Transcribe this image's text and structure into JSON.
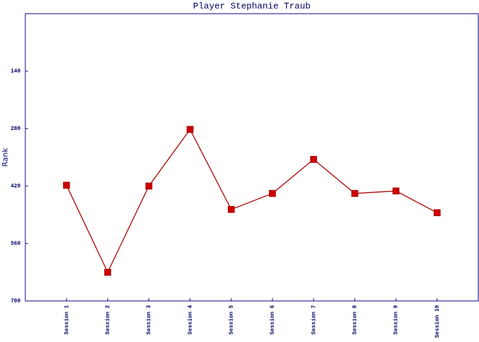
{
  "chart_data": {
    "type": "line",
    "title": "Player Stephanie Traub",
    "y_label": "Rank",
    "categories": [
      "Session 1",
      "Session 2",
      "Session 3",
      "Session 4",
      "Session 5",
      "Session 6",
      "Session 7",
      "Session 8",
      "Session 9",
      "Session 10"
    ],
    "values": [
      418,
      630,
      420,
      282,
      477,
      438,
      355,
      438,
      432,
      485
    ],
    "color": "#aa0000",
    "marker_color": "#cc0000",
    "ylim": [
      0,
      700
    ],
    "y_inverted": true,
    "yticks": [
      140,
      280,
      420,
      560,
      700
    ],
    "grid": false
  }
}
